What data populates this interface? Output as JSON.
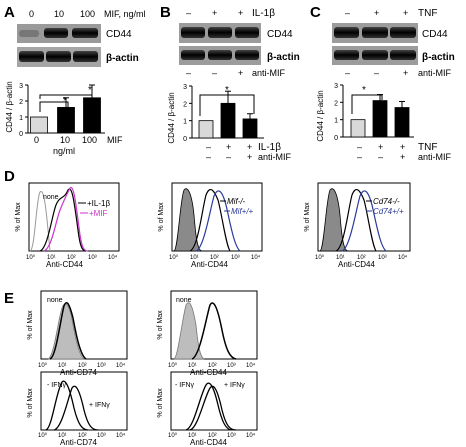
{
  "panels": {
    "A": {
      "letter": "A",
      "doses": [
        "0",
        "10",
        "100"
      ],
      "dose_unit": "MIF, ng/ml",
      "blot_labels": [
        "CD44",
        "β-actin"
      ],
      "ylabel": "CD44 / β-actin",
      "yticks": [
        "0",
        "1",
        "2",
        "3"
      ],
      "xlabel": "MIF",
      "unit_label": "ng/ml",
      "star": "*"
    },
    "B": {
      "letter": "B",
      "blot_labels": [
        "CD44",
        "β-actin"
      ],
      "ylabel": "CD44 / β-actin",
      "yticks": [
        "0",
        "1",
        "2",
        "3"
      ],
      "row1_label": "IL-1β",
      "row2_label": "anti-MIF",
      "row1_signs": [
        "–",
        "+",
        "+"
      ],
      "row2_signs": [
        "–",
        "–",
        "+"
      ],
      "star": "*"
    },
    "C": {
      "letter": "C",
      "blot_labels": [
        "CD44",
        "β-actin"
      ],
      "ylabel": "CD44 / β-actin",
      "yticks": [
        "0",
        "1",
        "2",
        "3"
      ],
      "row1_label": "TNF",
      "row2_label": "anti-MIF",
      "row1_signs": [
        "–",
        "+",
        "+"
      ],
      "row2_signs": [
        "–",
        "–",
        "+"
      ],
      "star": "*"
    },
    "D": {
      "letter": "D",
      "ylabel": "% of Max",
      "xlabel": "Anti-CD44",
      "xticks": [
        "10⁰",
        "10¹",
        "10²",
        "10³",
        "10⁴"
      ],
      "plot1": {
        "none": "none",
        "il1b": "+IL-1β",
        "mif": "+MIF"
      },
      "plot2": {
        "ko": "Mif-/-",
        "wt": "Mif+/+"
      },
      "plot3": {
        "ko": "Cd74-/-",
        "wt": "Cd74+/+"
      }
    },
    "E": {
      "letter": "E",
      "ylabel": "% of Max",
      "xticks": [
        "10⁰",
        "10¹",
        "10²",
        "10³",
        "10⁴"
      ],
      "top_left_xlabel": "Anti-CD74",
      "top_right_xlabel": "Anti-CD44",
      "bottom_left_xlabel": "Anti-CD74",
      "bottom_right_xlabel": "Anti-CD44",
      "none_label": "none",
      "minus_ifn": "- IFNγ",
      "plus_ifn": "+ IFNγ"
    }
  },
  "colors": {
    "black": "#000000",
    "gray_fill": "#bdbdbd",
    "light_bar": "#d9d9d9",
    "magenta": "#cc33cc",
    "blue": "#2a3a9a"
  },
  "chart_data": [
    {
      "type": "bar",
      "panel": "A",
      "categories": [
        "0",
        "10",
        "100"
      ],
      "values": [
        1.0,
        1.6,
        2.2
      ],
      "errors": [
        0,
        0.6,
        0.8
      ],
      "xlabel": "MIF",
      "ylabel": "CD44 / β-actin",
      "ylim": [
        0,
        3
      ]
    },
    {
      "type": "bar",
      "panel": "B",
      "categories": [
        "– / –",
        "+ / –",
        "+ / +"
      ],
      "values": [
        1.0,
        2.0,
        1.1
      ],
      "errors": [
        0,
        0.7,
        0.3
      ],
      "ylabel": "CD44 / β-actin",
      "ylim": [
        0,
        3
      ]
    },
    {
      "type": "bar",
      "panel": "C",
      "categories": [
        "– / –",
        "+ / –",
        "+ / +"
      ],
      "values": [
        1.0,
        2.1,
        1.7
      ],
      "errors": [
        0,
        0.35,
        0.35
      ],
      "ylabel": "CD44 / β-actin",
      "ylim": [
        0,
        3
      ]
    }
  ]
}
